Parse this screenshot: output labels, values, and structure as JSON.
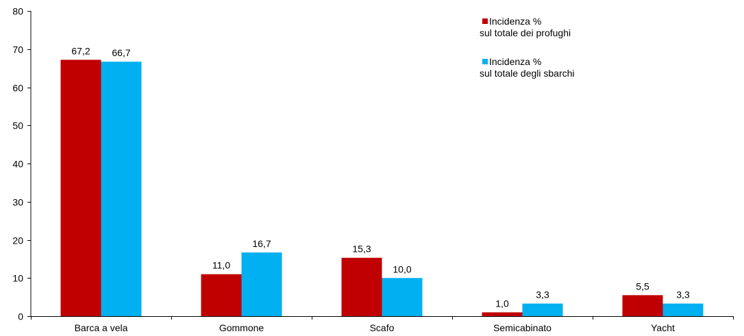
{
  "chart_data": {
    "type": "bar",
    "categories": [
      "Barca a vela",
      "Gommone",
      "Scafo",
      "Semicabinato",
      "Yacht"
    ],
    "series": [
      {
        "name_lines": [
          "Incidenza %",
          "sul totale dei profughi"
        ],
        "color": "#C00000",
        "values": [
          67.2,
          11.0,
          15.3,
          1.0,
          5.5
        ],
        "labels": [
          "67,2",
          "11,0",
          "15,3",
          "1,0",
          "5,5"
        ]
      },
      {
        "name_lines": [
          "Incidenza %",
          "sul totale degli sbarchi"
        ],
        "color": "#00B0F0",
        "values": [
          66.7,
          16.7,
          10.0,
          3.3,
          3.3
        ],
        "labels": [
          "66,7",
          "16,7",
          "10,0",
          "3,3",
          "3,3"
        ]
      }
    ],
    "ylim": [
      0,
      80
    ],
    "yticks": [
      0,
      10,
      20,
      30,
      40,
      50,
      60,
      70,
      80
    ],
    "grid": false,
    "legend_position": "top-right"
  }
}
